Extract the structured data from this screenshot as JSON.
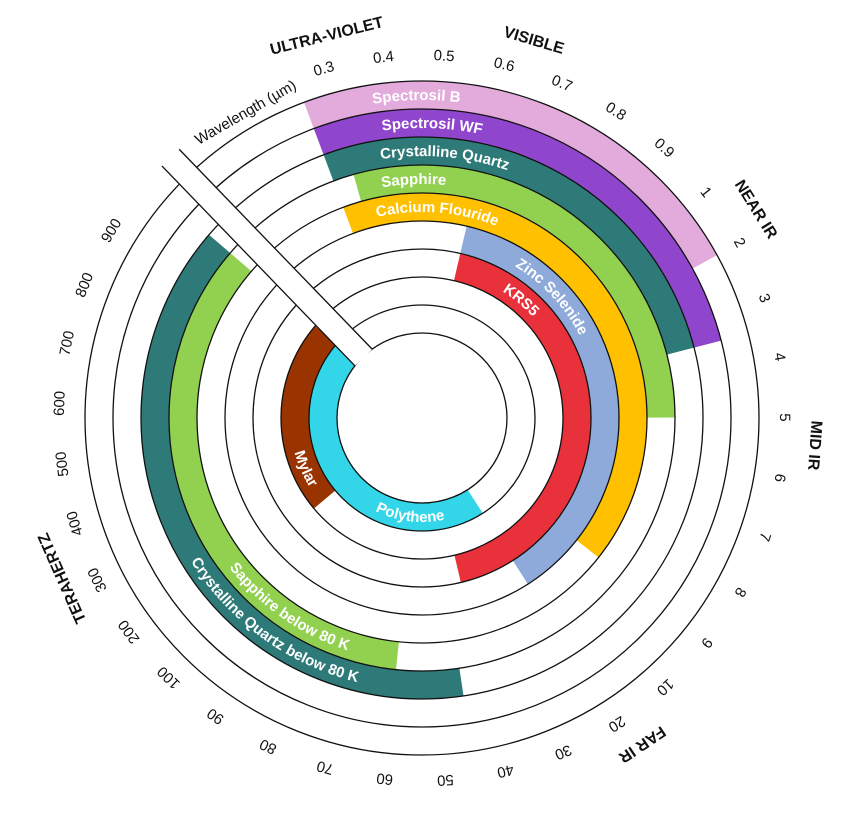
{
  "axis_label": "Wavelength (µm)",
  "regions": [
    "ULTRA-VIOLET",
    "VISIBLE",
    "NEAR IR",
    "MID IR",
    "FAR IR",
    "TERAHERTZ"
  ],
  "ticks": [
    0.3,
    0.4,
    0.5,
    0.6,
    0.7,
    0.8,
    0.9,
    1,
    2,
    3,
    4,
    5,
    6,
    7,
    8,
    9,
    10,
    20,
    30,
    40,
    50,
    60,
    70,
    80,
    90,
    100,
    200,
    300,
    400,
    500,
    600,
    700,
    800,
    900
  ],
  "rings": [
    [
      {
        "name": "Spectrosil B",
        "color": "#e2abdc",
        "range": [
          0.25,
          2
        ]
      }
    ],
    [
      {
        "name": "Spectrosil WF",
        "color": "#9046cc",
        "range": [
          0.25,
          3.5
        ]
      }
    ],
    [
      {
        "name": "Crystalline Quartz",
        "color": "#2e7a78",
        "range": [
          0.25,
          3.5
        ]
      },
      {
        "name": "Crystalline Quartz below 80 K",
        "color": "#2e7a78",
        "range": [
          45,
          1000
        ]
      }
    ],
    [
      {
        "name": "Sapphire",
        "color": "#92d050",
        "range": [
          0.3,
          5
        ]
      },
      {
        "name": "Sapphire below 80 K",
        "color": "#92d050",
        "range": [
          60,
          1000
        ]
      }
    ],
    [
      {
        "name": "Calcium Flouride",
        "color": "#ffc000",
        "range": [
          0.25,
          9
        ]
      }
    ],
    [
      {
        "name": "Zinc Selenide",
        "color": "#8eaadb",
        "range": [
          0.6,
          20
        ]
      }
    ],
    [
      {
        "name": "KRS5",
        "color": "#e8313a",
        "range": [
          0.6,
          40
        ]
      }
    ],
    [
      {
        "name": "Mylar",
        "color": "#993300",
        "range": [
          160,
          1000
        ]
      }
    ],
    [
      {
        "name": "Polythene",
        "color": "#33d6e8",
        "range": [
          20,
          1000
        ]
      }
    ]
  ]
}
